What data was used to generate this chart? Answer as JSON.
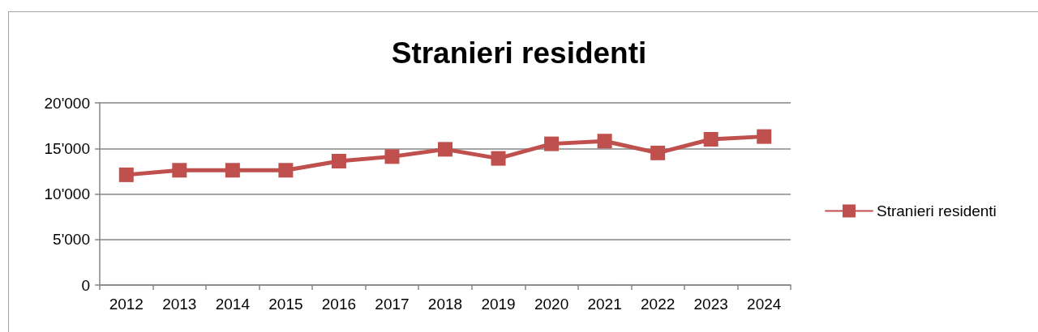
{
  "chart_data": {
    "type": "line",
    "title": "Stranieri residenti",
    "categories": [
      "2012",
      "2013",
      "2014",
      "2015",
      "2016",
      "2017",
      "2018",
      "2019",
      "2020",
      "2021",
      "2022",
      "2023",
      "2024"
    ],
    "series": [
      {
        "name": "Stranieri residenti",
        "color": "#c0504d",
        "values": [
          12100,
          12600,
          12600,
          12600,
          13600,
          14100,
          14900,
          13900,
          15500,
          15800,
          14500,
          16000,
          16300
        ]
      }
    ],
    "ylim": [
      0,
      20000
    ],
    "yticks": [
      0,
      {
        "value": 5000,
        "label": "5'000"
      },
      {
        "value": 10000,
        "label": "10'000"
      },
      {
        "value": 15000,
        "label": "15'000"
      },
      {
        "value": 20000,
        "label": "20'000"
      }
    ],
    "grid": "y",
    "legend": "right",
    "marker": "square",
    "line_style": "solid"
  }
}
